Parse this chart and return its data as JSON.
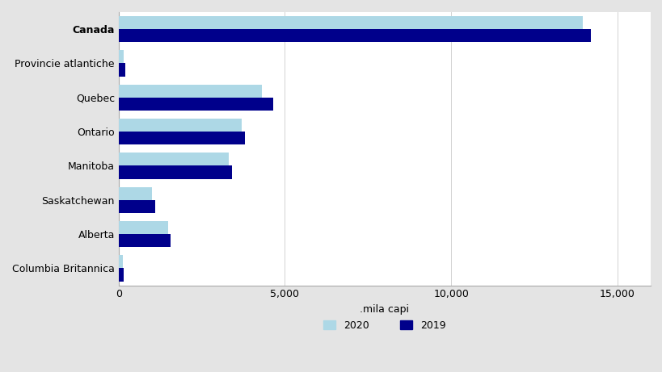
{
  "categories": [
    "Canada",
    "Provincie atlantiche",
    "Quebec",
    "Ontario",
    "Manitoba",
    "Saskatchewan",
    "Alberta",
    "Columbia Britannica"
  ],
  "values_2020": [
    13950,
    145,
    4300,
    3700,
    3300,
    1000,
    1500,
    130
  ],
  "values_2019": [
    14200,
    190,
    4650,
    3800,
    3400,
    1100,
    1550,
    155
  ],
  "color_2020": "#add8e6",
  "color_2019": "#00008b",
  "xlabel": ".mila capi",
  "xlim": [
    0,
    16000
  ],
  "xticks": [
    0,
    5000,
    10000,
    15000
  ],
  "xticklabels": [
    "0",
    "5,000",
    "10,000",
    "15,000"
  ],
  "legend_2020": "2020",
  "legend_2019": "2019",
  "background_color": "#e4e4e4",
  "plot_background": "#ffffff",
  "bold_categories": [
    "Canada"
  ],
  "bar_height": 0.38,
  "figsize": [
    8.2,
    4.61
  ],
  "dpi": 100
}
